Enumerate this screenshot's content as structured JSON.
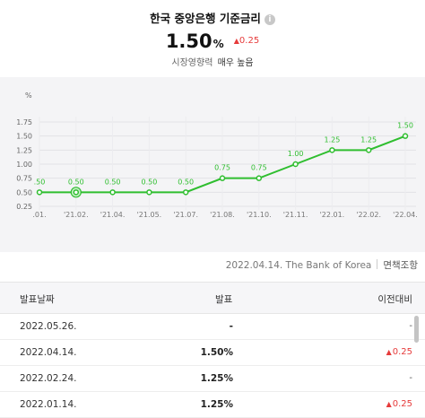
{
  "header": {
    "title": "한국 중앙은행 기준금리",
    "info_icon": "info-icon",
    "rate": "1.50",
    "rate_unit": "%",
    "change_arrow": "▲",
    "change": "0.25",
    "expectation_label": "시장영향력",
    "expectation_value": "매우 높음"
  },
  "colors": {
    "line": "#2fbe2f",
    "up": "#e63b3b",
    "chart_bg": "#f4f4f6"
  },
  "chart_data": {
    "type": "line",
    "yunit": "%",
    "ylim": [
      0.25,
      1.75
    ],
    "yticks": [
      "0.25",
      "0.50",
      "0.75",
      "1.00",
      "1.25",
      "1.50",
      "1.75"
    ],
    "xticks": [
      ".01.",
      "'21.02.",
      "'21.04.",
      "'21.05.",
      "'21.07.",
      "'21.08.",
      "'21.10.",
      "'21.11.",
      "'22.01.",
      "'22.02.",
      "'22.04."
    ],
    "series": [
      {
        "values": [
          0.5,
          0.5,
          0.5,
          0.5,
          0.5,
          0.75,
          0.75,
          1.0,
          1.25,
          1.25,
          1.5
        ],
        "labels": [
          ".50",
          "0.50",
          "0.50",
          "0.50",
          "0.50",
          "0.75",
          "0.75",
          "1.00",
          "1.25",
          "1.25",
          "1.50"
        ]
      }
    ],
    "highlight_index": 1,
    "grid": true
  },
  "source": {
    "text": "2022.04.14. The Bank of Korea",
    "button": "면책조항"
  },
  "table": {
    "headers": [
      "발표날짜",
      "발표",
      "이전대비"
    ],
    "rows": [
      {
        "date": "2022.05.26.",
        "value": "-",
        "prev": "-",
        "up": false
      },
      {
        "date": "2022.04.14.",
        "value": "1.50%",
        "prev": "0.25",
        "up": true
      },
      {
        "date": "2022.02.24.",
        "value": "1.25%",
        "prev": "-",
        "up": false
      },
      {
        "date": "2022.01.14.",
        "value": "1.25%",
        "prev": "0.25",
        "up": true
      }
    ],
    "up_arrow": "▲"
  }
}
